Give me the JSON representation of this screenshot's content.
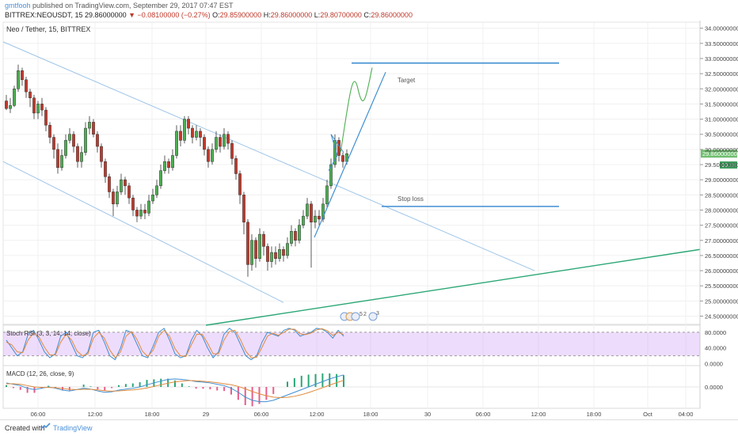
{
  "header": {
    "author": "gmtfooh",
    "published": "published on TradingView.com, September 29, 2017 07:47 EST",
    "symbol": "BITTREX:NEOUSDT, 15",
    "last": "29.86000000",
    "change": "▼ −0.08100000 (−0.27%)",
    "o_label": "O:",
    "o_val": "29.85900000",
    "h_label": "H:",
    "h_val": "29.86000000",
    "l_label": "L:",
    "l_val": "29.80700000",
    "c_label": "C:",
    "c_val": "29.86000000"
  },
  "footer": {
    "created": "Created with",
    "brand": "TradingView"
  },
  "colors": {
    "up": "#4caf50",
    "down": "#c0392b",
    "channel": "#9ec5e8",
    "trend": "#2aa775",
    "target": "#3f8fd2",
    "stoch_k": "#3f8fd2",
    "stoch_d": "#e08a3c",
    "macd": "#3f8fd2",
    "signal": "#e08a3c",
    "hist_up": "#2aa775",
    "hist_down": "#e85d8a",
    "band": "#cf9cf5"
  },
  "chart_data": [
    {
      "type": "candlestick",
      "title": "Neo / Tether, 15, BITTREX",
      "price_label": "29.86000000",
      "vol_label": "13.00",
      "y_ticks": [
        "34.00000000",
        "33.50000000",
        "33.00000000",
        "32.50000000",
        "32.00000000",
        "31.50000000",
        "31.00000000",
        "30.50000000",
        "30.00000000",
        "29.50000000",
        "29.00000000",
        "28.50000000",
        "28.00000000",
        "27.50000000",
        "27.00000000",
        "26.50000000",
        "26.00000000",
        "25.50000000",
        "25.00000000",
        "24.50000000"
      ],
      "x_ticks": [
        "06:00",
        "12:00",
        "18:00",
        "29",
        "06:00",
        "12:00",
        "18:00",
        "30",
        "06:00",
        "12:00",
        "18:00",
        "Oct",
        "04:00"
      ],
      "ylim": [
        24.2,
        34.2
      ],
      "candles": [
        [
          31.6,
          31.35,
          31.8,
          31.3
        ],
        [
          31.35,
          31.45,
          31.7,
          31.2
        ],
        [
          31.45,
          32.0,
          32.1,
          31.4
        ],
        [
          32.0,
          32.6,
          32.8,
          31.9
        ],
        [
          32.6,
          32.3,
          32.7,
          32.1
        ],
        [
          32.3,
          31.9,
          32.4,
          31.7
        ],
        [
          31.9,
          31.7,
          32.0,
          31.4
        ],
        [
          31.7,
          31.2,
          31.8,
          31.0
        ],
        [
          31.2,
          31.5,
          31.6,
          31.0
        ],
        [
          31.5,
          31.3,
          31.7,
          31.1
        ],
        [
          31.3,
          30.8,
          31.4,
          30.6
        ],
        [
          30.8,
          30.4,
          30.9,
          30.2
        ],
        [
          30.4,
          30.0,
          30.5,
          29.7
        ],
        [
          30.0,
          29.4,
          30.2,
          29.2
        ],
        [
          29.4,
          29.8,
          30.0,
          29.3
        ],
        [
          29.8,
          30.3,
          30.5,
          29.7
        ],
        [
          30.3,
          30.5,
          30.7,
          30.2
        ],
        [
          30.5,
          30.1,
          30.6,
          29.9
        ],
        [
          30.1,
          29.6,
          30.2,
          29.4
        ],
        [
          29.6,
          29.9,
          30.1,
          29.4
        ],
        [
          29.9,
          30.7,
          30.9,
          29.8
        ],
        [
          30.7,
          30.9,
          31.1,
          30.5
        ],
        [
          30.9,
          30.5,
          31.0,
          30.4
        ],
        [
          30.5,
          30.1,
          30.6,
          29.9
        ],
        [
          30.1,
          29.6,
          30.2,
          29.4
        ],
        [
          29.6,
          29.1,
          29.7,
          28.9
        ],
        [
          29.1,
          28.6,
          29.2,
          28.4
        ],
        [
          28.6,
          28.2,
          28.7,
          27.8
        ],
        [
          28.2,
          28.6,
          28.8,
          28.1
        ],
        [
          28.6,
          29.0,
          29.2,
          28.5
        ],
        [
          29.0,
          28.8,
          29.1,
          28.5
        ],
        [
          28.8,
          28.4,
          28.9,
          28.2
        ],
        [
          28.4,
          28.0,
          28.5,
          27.8
        ],
        [
          28.0,
          27.8,
          28.1,
          27.6
        ],
        [
          27.8,
          28.0,
          28.2,
          27.7
        ],
        [
          28.0,
          27.9,
          28.2,
          27.7
        ],
        [
          27.9,
          28.3,
          28.5,
          27.8
        ],
        [
          28.3,
          28.5,
          28.7,
          28.2
        ],
        [
          28.5,
          28.8,
          29.0,
          28.4
        ],
        [
          28.8,
          29.3,
          29.5,
          28.7
        ],
        [
          29.3,
          29.6,
          29.8,
          29.2
        ],
        [
          29.6,
          29.4,
          29.7,
          29.2
        ],
        [
          29.4,
          29.8,
          30.0,
          29.3
        ],
        [
          29.8,
          30.6,
          30.8,
          29.7
        ],
        [
          30.6,
          30.3,
          30.8,
          30.1
        ],
        [
          30.3,
          31.0,
          31.1,
          30.2
        ],
        [
          31.0,
          30.7,
          31.1,
          30.5
        ],
        [
          30.7,
          30.4,
          30.8,
          30.2
        ],
        [
          30.4,
          30.6,
          30.8,
          30.3
        ],
        [
          30.6,
          30.4,
          30.7,
          30.1
        ],
        [
          30.4,
          30.0,
          30.5,
          29.8
        ],
        [
          30.0,
          29.6,
          30.1,
          29.4
        ],
        [
          29.6,
          30.0,
          30.2,
          29.5
        ],
        [
          30.0,
          30.4,
          30.6,
          29.9
        ],
        [
          30.4,
          30.1,
          30.5,
          29.9
        ],
        [
          30.1,
          30.5,
          30.7,
          30.0
        ],
        [
          30.5,
          30.2,
          30.6,
          30.0
        ],
        [
          30.2,
          29.7,
          30.3,
          29.5
        ],
        [
          29.7,
          29.2,
          29.8,
          29.0
        ],
        [
          29.2,
          28.5,
          29.3,
          28.2
        ],
        [
          28.5,
          27.6,
          28.6,
          27.2
        ],
        [
          27.6,
          26.2,
          27.7,
          25.8
        ],
        [
          26.2,
          27.0,
          27.2,
          26.0
        ],
        [
          27.0,
          26.4,
          27.1,
          26.1
        ],
        [
          26.4,
          27.2,
          27.4,
          26.3
        ],
        [
          27.2,
          26.8,
          27.3,
          26.5
        ],
        [
          26.8,
          26.3,
          26.9,
          26.0
        ],
        [
          26.3,
          26.6,
          26.8,
          26.1
        ],
        [
          26.6,
          26.4,
          26.8,
          26.2
        ],
        [
          26.4,
          26.7,
          26.9,
          26.3
        ],
        [
          26.7,
          26.5,
          26.8,
          26.3
        ],
        [
          26.5,
          26.9,
          27.1,
          26.4
        ],
        [
          26.9,
          27.3,
          27.5,
          26.8
        ],
        [
          27.3,
          27.0,
          27.4,
          26.8
        ],
        [
          27.0,
          27.5,
          27.7,
          26.9
        ],
        [
          27.5,
          27.8,
          28.0,
          27.4
        ],
        [
          27.8,
          28.2,
          28.4,
          27.7
        ],
        [
          28.2,
          27.6,
          28.3,
          26.1
        ],
        [
          27.6,
          27.8,
          28.0,
          27.4
        ],
        [
          27.8,
          27.7,
          28.0,
          27.5
        ],
        [
          27.7,
          28.2,
          28.4,
          27.6
        ],
        [
          28.2,
          28.8,
          29.0,
          28.1
        ],
        [
          28.8,
          29.5,
          29.7,
          28.7
        ],
        [
          29.5,
          30.3,
          30.5,
          29.4
        ],
        [
          30.3,
          29.8,
          30.4,
          29.6
        ],
        [
          29.8,
          29.6,
          29.9,
          29.4
        ],
        [
          29.6,
          29.86,
          30.0,
          29.5
        ]
      ],
      "annotations": {
        "target": "Target",
        "stop": "Stop loss"
      }
    },
    {
      "type": "line",
      "title": "Stoch RSI (3, 3, 14, 14, close)",
      "y_ticks": [
        "80.0000",
        "40.0000",
        "0.0000"
      ],
      "ylim": [
        -5,
        100
      ],
      "band": [
        20,
        80
      ],
      "series": [
        {
          "name": "K",
          "values": [
            60,
            40,
            20,
            30,
            75,
            85,
            60,
            30,
            15,
            25,
            70,
            80,
            50,
            20,
            15,
            30,
            80,
            85,
            55,
            20,
            10,
            40,
            85,
            80,
            50,
            20,
            15,
            45,
            80,
            90,
            60,
            25,
            15,
            20,
            60,
            85,
            70,
            40,
            15,
            30,
            75,
            90,
            80,
            50,
            20,
            10,
            20,
            55,
            80,
            75,
            70,
            85,
            90,
            85,
            70,
            75,
            80,
            90,
            88,
            80,
            65,
            85,
            70
          ]
        },
        {
          "name": "D",
          "values": [
            55,
            48,
            30,
            28,
            60,
            78,
            68,
            42,
            22,
            22,
            55,
            75,
            60,
            32,
            20,
            25,
            65,
            80,
            65,
            35,
            15,
            30,
            70,
            82,
            62,
            32,
            18,
            35,
            70,
            85,
            70,
            38,
            20,
            18,
            48,
            75,
            75,
            52,
            25,
            25,
            60,
            82,
            85,
            62,
            32,
            15,
            16,
            42,
            70,
            78,
            72,
            80,
            88,
            88,
            76,
            74,
            78,
            86,
            89,
            84,
            72,
            80,
            74
          ]
        }
      ]
    },
    {
      "type": "line",
      "title": "MACD (12, 26, close, 9)",
      "y_ticks": [
        "0.0000"
      ],
      "ylim": [
        -0.8,
        0.8
      ],
      "series": [
        {
          "name": "MACD",
          "values": [
            0.15,
            0.1,
            0.05,
            -0.05,
            -0.1,
            -0.05,
            0.0,
            -0.05,
            -0.12,
            -0.15,
            -0.1,
            -0.05,
            -0.08,
            -0.15,
            -0.2,
            -0.18,
            -0.12,
            -0.08,
            -0.05,
            0.0,
            0.08,
            0.15,
            0.22,
            0.28,
            0.3,
            0.28,
            0.25,
            0.2,
            0.18,
            0.15,
            0.1,
            0.05,
            -0.05,
            -0.2,
            -0.38,
            -0.5,
            -0.55,
            -0.55,
            -0.5,
            -0.4,
            -0.3,
            -0.2,
            -0.1,
            0.0,
            0.1,
            0.2,
            0.3,
            0.38,
            0.45
          ]
        },
        {
          "name": "Signal",
          "values": [
            0.12,
            0.12,
            0.1,
            0.05,
            0.0,
            -0.02,
            -0.02,
            -0.03,
            -0.06,
            -0.09,
            -0.1,
            -0.09,
            -0.09,
            -0.11,
            -0.14,
            -0.16,
            -0.15,
            -0.13,
            -0.11,
            -0.08,
            -0.04,
            0.02,
            0.08,
            0.14,
            0.19,
            0.22,
            0.24,
            0.23,
            0.21,
            0.19,
            0.16,
            0.12,
            0.08,
            0.02,
            -0.07,
            -0.17,
            -0.26,
            -0.33,
            -0.38,
            -0.4,
            -0.39,
            -0.35,
            -0.29,
            -0.21,
            -0.12,
            -0.03,
            0.07,
            0.16,
            0.25
          ]
        }
      ]
    }
  ]
}
